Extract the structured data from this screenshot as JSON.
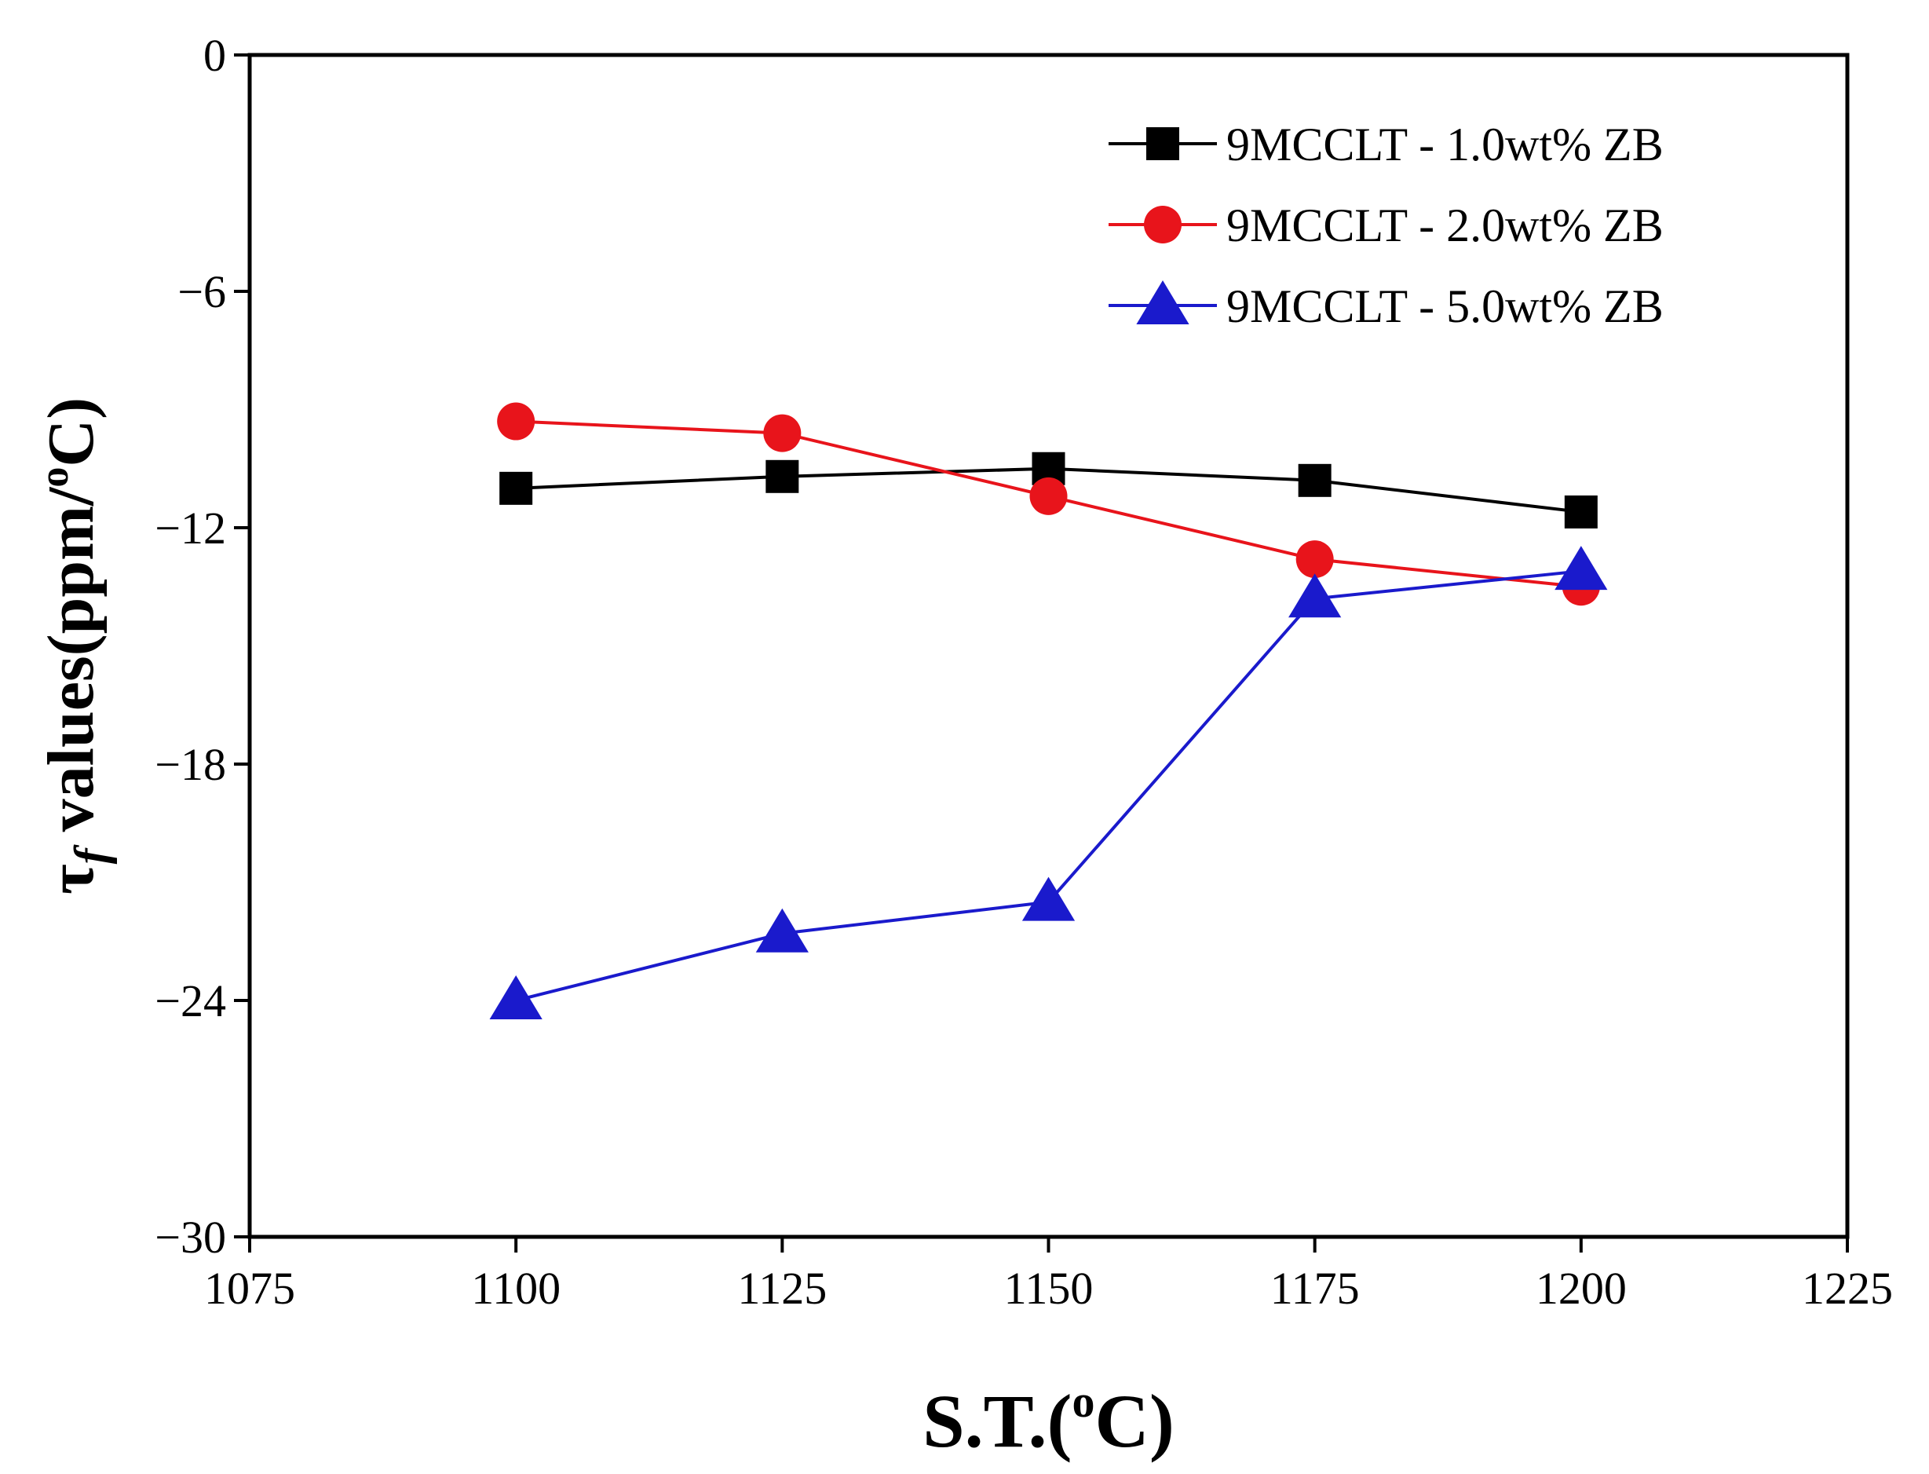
{
  "chart_data": {
    "type": "line",
    "title": "",
    "xlabel": "S.T.(oC)",
    "xlabel_parts": {
      "main": "S.T.(",
      "sup": "o",
      "end": "C)"
    },
    "ylabel": "τf values(ppm/oC)",
    "ylabel_parts": {
      "tau": "τ",
      "sub": "f",
      "main": " values(ppm/",
      "sup": "o",
      "end": "C)"
    },
    "xlim": [
      1075,
      1225
    ],
    "ylim": [
      -30,
      0
    ],
    "xticks": [
      1075,
      1100,
      1125,
      1150,
      1175,
      1200,
      1225
    ],
    "yticks": [
      0,
      -6,
      -12,
      -18,
      -24,
      -30
    ],
    "ytick_labels": [
      "0",
      "−6",
      "−12",
      "−18",
      "−24",
      "−30"
    ],
    "grid": false,
    "legend_position": "top-right",
    "x": [
      1100,
      1125,
      1150,
      1175,
      1200
    ],
    "series": [
      {
        "name": "9MCCLT - 1.0wt% ZB",
        "marker": "square",
        "color": "#000000",
        "values": [
          -11.0,
          -10.7,
          -10.5,
          -10.8,
          -11.6
        ]
      },
      {
        "name": "9MCCLT - 2.0wt% ZB",
        "marker": "circle",
        "color": "#e8141b",
        "values": [
          -9.3,
          -9.6,
          -11.2,
          -12.8,
          -13.5
        ]
      },
      {
        "name": "9MCCLT - 5.0wt% ZB",
        "marker": "triangle",
        "color": "#1a1acc",
        "values": [
          -24.0,
          -22.3,
          -21.5,
          -13.8,
          -13.1
        ]
      }
    ]
  }
}
